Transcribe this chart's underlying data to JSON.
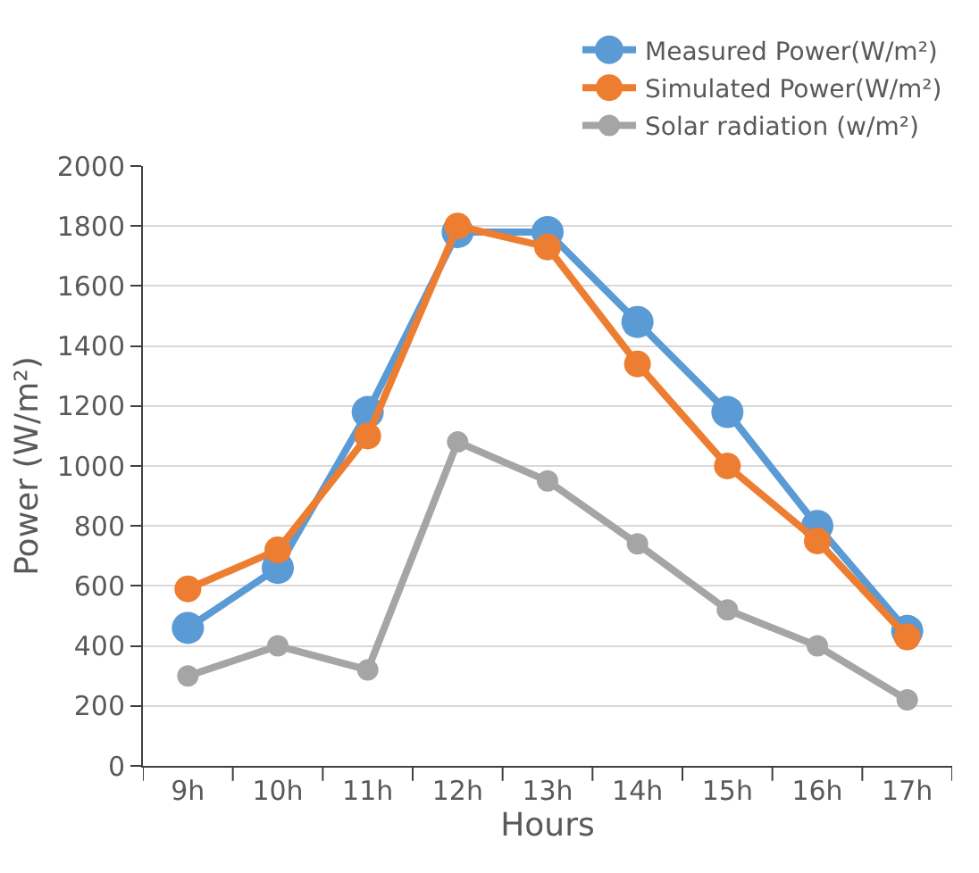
{
  "chart_data": {
    "type": "line",
    "xlabel": "Hours",
    "ylabel": "Power (W/m²)",
    "categories": [
      "9h",
      "10h",
      "11h",
      "12h",
      "13h",
      "14h",
      "15h",
      "16h",
      "17h"
    ],
    "series": [
      {
        "name": "Measured Power(W/m²)",
        "color": "#5b9bd5",
        "values": [
          460,
          660,
          1180,
          1780,
          1780,
          1480,
          1180,
          800,
          450
        ]
      },
      {
        "name": "Simulated Power(W/m²)",
        "color": "#ed7d31",
        "values": [
          590,
          720,
          1100,
          1800,
          1730,
          1340,
          1000,
          750,
          430
        ]
      },
      {
        "name": "Solar radiation (w/m²)",
        "color": "#a5a5a5",
        "values": [
          300,
          400,
          320,
          1080,
          950,
          740,
          520,
          400,
          220
        ]
      }
    ],
    "ylim": [
      0,
      2000
    ],
    "yticks": [
      0,
      200,
      400,
      600,
      800,
      1000,
      1200,
      1400,
      1600,
      1800,
      2000
    ],
    "grid": "y",
    "legend": "top right",
    "marker": "circle",
    "line_style": "solid"
  }
}
